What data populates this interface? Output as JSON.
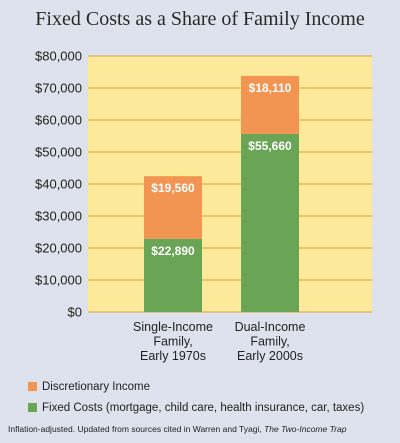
{
  "chart_data": {
    "type": "bar",
    "stacked": true,
    "title": "Fixed Costs as a Share of Family Income",
    "categories": [
      [
        "Single-Income",
        "Family,",
        "Early 1970s"
      ],
      [
        "Dual-Income",
        "Family,",
        "Early 2000s"
      ]
    ],
    "series": [
      {
        "name": "Fixed Costs (mortgage, child care, health insurance, car, taxes)",
        "values": [
          22890,
          55660
        ],
        "labels": [
          "$22,890",
          "$55,660"
        ],
        "color": "#6aa556"
      },
      {
        "name": "Discretionary Income",
        "values": [
          19560,
          18110
        ],
        "labels": [
          "$19,560",
          "$18,110"
        ],
        "color": "#f29452"
      }
    ],
    "ylim": [
      0,
      80000
    ],
    "yticks": [
      0,
      10000,
      20000,
      30000,
      40000,
      50000,
      60000,
      70000,
      80000
    ],
    "ytick_labels": [
      "$0",
      "$10,000",
      "$20,000",
      "$30,000",
      "$40,000",
      "$50,000",
      "$60,000",
      "$70,000",
      "$80,000"
    ],
    "xlabel": "",
    "ylabel": "",
    "grid": true,
    "legend_position": "bottom",
    "plot_background": "#fce99a",
    "grid_color": "#d6a23a"
  },
  "legend": [
    {
      "label": "Discretionary Income",
      "color": "#f29452"
    },
    {
      "label": "Fixed Costs (mortgage, child care, health insurance, car, taxes)",
      "color": "#6aa556"
    }
  ],
  "note": {
    "prefix": "Inflation-adjusted. Updated from sources cited in Warren and Tyagi, ",
    "book": "The Two-Income Trap"
  }
}
